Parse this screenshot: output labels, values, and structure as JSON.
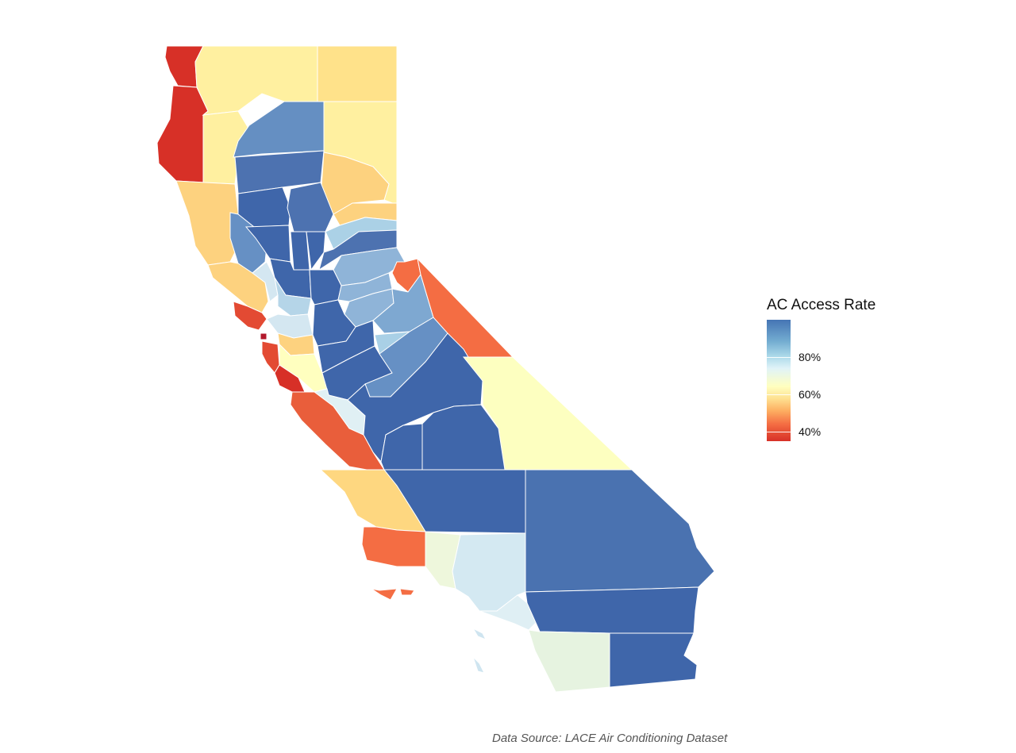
{
  "legend": {
    "title": "AC Access Rate",
    "labels": [
      "80%",
      "60%",
      "40%"
    ]
  },
  "caption": "Data Source: LACE Air Conditioning Dataset",
  "colors": {
    "very_low": "#d73027",
    "low": "#f46d43",
    "mid_low": "#fdd27f",
    "mid": "#ffffbf",
    "mid_high": "#e0f3f8",
    "high": "#7ea8d1",
    "very_high": "#3f66aa"
  }
}
